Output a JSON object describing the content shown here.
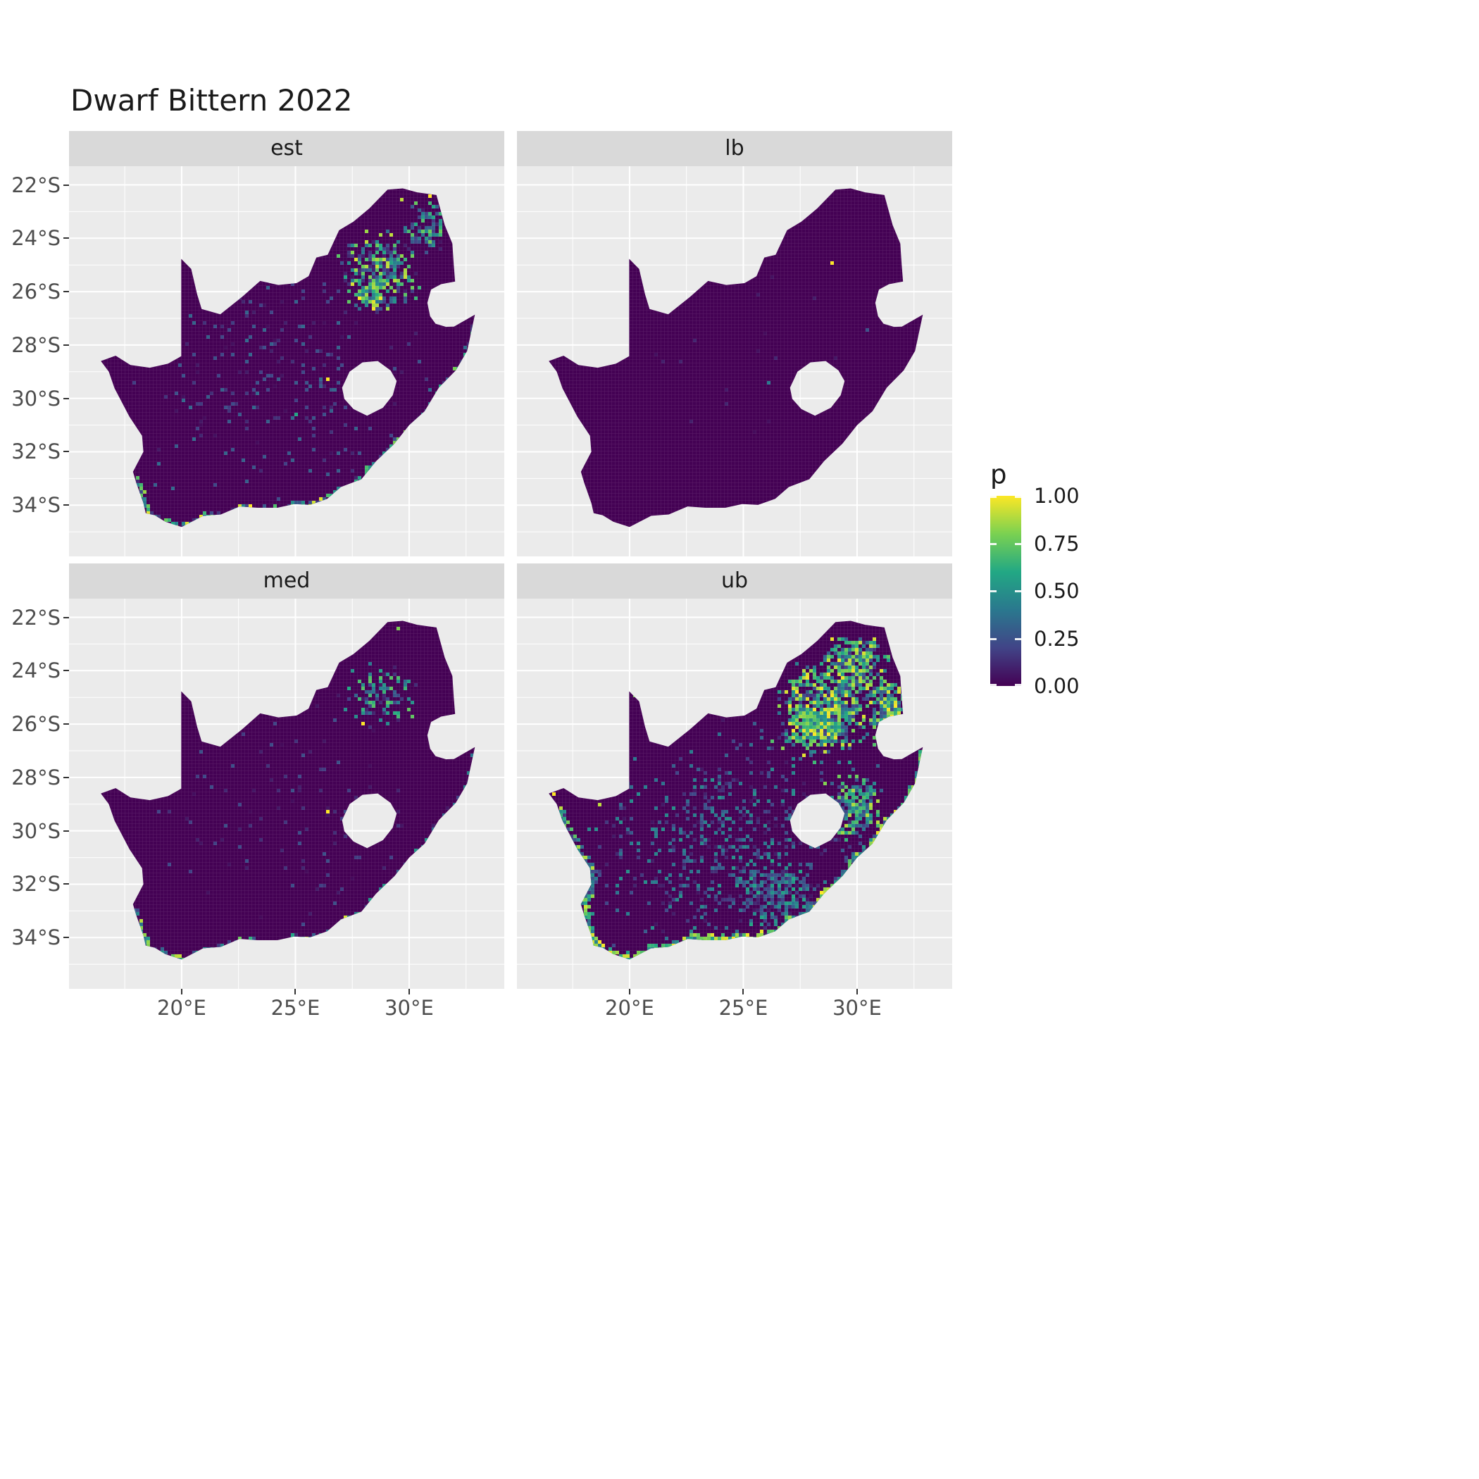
{
  "title": "Dwarf Bittern 2022",
  "axes": {
    "x_tick_labels": [
      "20°E",
      "25°E",
      "30°E"
    ],
    "x_tick_values": [
      20,
      25,
      30
    ],
    "y_tick_labels": [
      "22°S",
      "24°S",
      "26°S",
      "28°S",
      "30°S",
      "32°S",
      "34°S"
    ],
    "y_tick_values": [
      -22,
      -24,
      -26,
      -28,
      -30,
      -32,
      -34
    ],
    "x_minor": [
      17.5,
      22.5,
      27.5,
      32.5
    ],
    "y_minor": [
      -23,
      -25,
      -27,
      -29,
      -31,
      -33,
      -35
    ],
    "x_range": [
      15.05,
      34.18
    ],
    "y_range": [
      -35.92,
      -21.3
    ]
  },
  "legend": {
    "title": "p",
    "tick_labels": [
      "1.00",
      "0.75",
      "0.50",
      "0.25",
      "0.00"
    ],
    "tick_values": [
      1.0,
      0.75,
      0.5,
      0.25,
      0.0
    ]
  },
  "style": {
    "panel_bg": "#EBEBEB",
    "strip_bg": "#D9D9D9",
    "axis_text": "#4D4D4D",
    "map_zero": "#440154",
    "grid": "#FFFFFF"
  },
  "viridis_anchors": [
    [
      0.0,
      "#440154"
    ],
    [
      0.2,
      "#414487"
    ],
    [
      0.4,
      "#2A788E"
    ],
    [
      0.6,
      "#22A884"
    ],
    [
      0.8,
      "#7AD151"
    ],
    [
      1.0,
      "#FDE725"
    ]
  ],
  "chart_data": {
    "type": "heatmap",
    "title": "Dwarf Bittern 2022",
    "region": "South Africa",
    "value_name": "p",
    "value_range": [
      0,
      1
    ],
    "palette": "viridis",
    "facet_layout": "2x2 grid, shared lon/lat axes, shared colourbar",
    "facets": [
      {
        "label": "est",
        "seed": 101,
        "pattern": "mostly p=0; scattered low-to-high cells in the northeast and along the southern and eastern coasts",
        "clusters": [
          {
            "type": "blob",
            "c": [
              28.6,
              -25.2
            ],
            "r": [
              2.3,
              1.9
            ],
            "n": 280,
            "p": [
              0.05,
              0.95
            ]
          },
          {
            "type": "blob",
            "c": [
              30.8,
              -23.6
            ],
            "r": [
              1.2,
              1.2
            ],
            "n": 90,
            "p": [
              0.05,
              0.8
            ]
          },
          {
            "type": "blob",
            "c": [
              28.2,
              -26.1
            ],
            "r": [
              0.8,
              0.7
            ],
            "n": 70,
            "p": [
              0.3,
              1.0
            ]
          },
          {
            "type": "band",
            "line": "south",
            "n": 240,
            "jitter": 0.22,
            "p": [
              0.1,
              1.0
            ]
          },
          {
            "type": "band",
            "line": "east",
            "n": 130,
            "jitter": 0.22,
            "p": [
              0.05,
              0.85
            ]
          },
          {
            "type": "blob",
            "c": [
              24.5,
              -29.5
            ],
            "r": [
              8.0,
              6.0
            ],
            "n": 260,
            "p": [
              0.02,
              0.35
            ]
          }
        ],
        "dots": [
          [
            26.35,
            -29.25,
            1.0
          ],
          [
            27.8,
            -26.15,
            1.0
          ],
          [
            30.9,
            -22.3,
            1.0
          ],
          [
            24.9,
            -30.6,
            0.6
          ],
          [
            29.6,
            -22.5,
            0.9
          ]
        ]
      },
      {
        "label": "lb",
        "seed": 202,
        "pattern": "essentially all p=0 with a few isolated non-zero cells",
        "clusters": [
          {
            "type": "blob",
            "c": [
              25.0,
              -28.5
            ],
            "r": [
              7.0,
              5.0
            ],
            "n": 18,
            "p": [
              0.02,
              0.12
            ]
          }
        ],
        "dots": [
          [
            28.85,
            -24.85,
            1.0
          ],
          [
            26.1,
            -29.3,
            0.4
          ],
          [
            30.3,
            -27.4,
            0.25
          ]
        ]
      },
      {
        "label": "med",
        "seed": 303,
        "pattern": "mostly p=0; sparse non-zero cells in the northeast and along the southern coast",
        "clusters": [
          {
            "type": "blob",
            "c": [
              28.6,
              -24.9
            ],
            "r": [
              1.9,
              1.5
            ],
            "n": 110,
            "p": [
              0.05,
              0.75
            ]
          },
          {
            "type": "band",
            "line": "south",
            "n": 150,
            "jitter": 0.18,
            "p": [
              0.1,
              0.95
            ]
          },
          {
            "type": "band",
            "line": "east",
            "n": 60,
            "jitter": 0.18,
            "p": [
              0.05,
              0.6
            ]
          },
          {
            "type": "blob",
            "c": [
              24.5,
              -29.5
            ],
            "r": [
              8.0,
              6.0
            ],
            "n": 120,
            "p": [
              0.02,
              0.25
            ]
          }
        ],
        "dots": [
          [
            26.35,
            -29.25,
            1.0
          ],
          [
            27.85,
            -25.95,
            1.0
          ],
          [
            29.5,
            -22.3,
            0.8
          ],
          [
            31.2,
            -22.25,
            0.9
          ]
        ]
      },
      {
        "label": "ub",
        "seed": 404,
        "pattern": "extensive moderate-to-high p across the northeast and along the southern and eastern coasts; speckled low values inland",
        "clusters": [
          {
            "type": "blob",
            "c": [
              28.4,
              -25.4
            ],
            "r": [
              2.6,
              2.2
            ],
            "n": 650,
            "p": [
              0.1,
              1.0
            ]
          },
          {
            "type": "blob",
            "c": [
              27.9,
              -26.1
            ],
            "r": [
              1.1,
              0.9
            ],
            "n": 220,
            "p": [
              0.4,
              1.0
            ]
          },
          {
            "type": "blob",
            "c": [
              29.8,
              -23.6
            ],
            "r": [
              1.8,
              1.3
            ],
            "n": 260,
            "p": [
              0.1,
              1.0
            ]
          },
          {
            "type": "blob",
            "c": [
              31.2,
              -25.3
            ],
            "r": [
              1.0,
              1.6
            ],
            "n": 200,
            "p": [
              0.2,
              1.0
            ]
          },
          {
            "type": "band",
            "line": "east",
            "n": 420,
            "jitter": 0.28,
            "p": [
              0.3,
              1.0
            ]
          },
          {
            "type": "band",
            "line": "south",
            "n": 520,
            "jitter": 0.3,
            "p": [
              0.35,
              1.0
            ]
          },
          {
            "type": "band",
            "line": "west",
            "n": 130,
            "jitter": 0.25,
            "p": [
              0.15,
              0.9
            ]
          },
          {
            "type": "blob",
            "c": [
              24.5,
              -30.5
            ],
            "r": [
              8.0,
              5.5
            ],
            "n": 600,
            "p": [
              0.05,
              0.5
            ]
          },
          {
            "type": "blob",
            "c": [
              29.8,
              -29.0
            ],
            "r": [
              1.5,
              1.5
            ],
            "n": 200,
            "p": [
              0.1,
              0.9
            ]
          },
          {
            "type": "blob",
            "c": [
              26.5,
              -32.3
            ],
            "r": [
              2.5,
              1.6
            ],
            "n": 220,
            "p": [
              0.05,
              0.6
            ]
          }
        ],
        "dots": [
          [
            16.6,
            -28.6,
            1.0
          ],
          [
            18.6,
            -28.9,
            0.9
          ],
          [
            20.2,
            -24.9,
            0.8
          ]
        ]
      }
    ],
    "map_outline": {
      "country": [
        [
          16.45,
          -28.6
        ],
        [
          17.1,
          -28.4
        ],
        [
          17.75,
          -28.75
        ],
        [
          18.6,
          -28.85
        ],
        [
          19.4,
          -28.7
        ],
        [
          19.98,
          -28.42
        ],
        [
          19.98,
          -24.77
        ],
        [
          20.42,
          -25.15
        ],
        [
          20.68,
          -26.1
        ],
        [
          20.88,
          -26.65
        ],
        [
          21.7,
          -26.85
        ],
        [
          22.65,
          -26.2
        ],
        [
          23.45,
          -25.6
        ],
        [
          24.25,
          -25.75
        ],
        [
          25.05,
          -25.68
        ],
        [
          25.58,
          -25.42
        ],
        [
          25.92,
          -24.72
        ],
        [
          26.42,
          -24.62
        ],
        [
          26.92,
          -23.7
        ],
        [
          27.55,
          -23.38
        ],
        [
          28.25,
          -22.88
        ],
        [
          29.05,
          -22.18
        ],
        [
          29.72,
          -22.13
        ],
        [
          30.35,
          -22.28
        ],
        [
          31.2,
          -22.38
        ],
        [
          31.56,
          -23.5
        ],
        [
          31.9,
          -24.2
        ],
        [
          31.96,
          -25.0
        ],
        [
          32.02,
          -25.62
        ],
        [
          31.4,
          -25.72
        ],
        [
          30.96,
          -25.92
        ],
        [
          30.8,
          -26.42
        ],
        [
          30.92,
          -26.92
        ],
        [
          31.16,
          -27.2
        ],
        [
          31.62,
          -27.32
        ],
        [
          31.97,
          -27.31
        ],
        [
          32.89,
          -26.86
        ],
        [
          32.55,
          -28.22
        ],
        [
          32.05,
          -28.95
        ],
        [
          31.3,
          -29.6
        ],
        [
          30.68,
          -30.48
        ],
        [
          30.0,
          -31.0
        ],
        [
          29.35,
          -31.7
        ],
        [
          28.55,
          -32.35
        ],
        [
          27.9,
          -33.03
        ],
        [
          27.0,
          -33.32
        ],
        [
          26.4,
          -33.76
        ],
        [
          25.65,
          -33.99
        ],
        [
          24.95,
          -33.96
        ],
        [
          24.2,
          -34.1
        ],
        [
          23.35,
          -34.1
        ],
        [
          22.55,
          -34.05
        ],
        [
          21.72,
          -34.35
        ],
        [
          20.95,
          -34.4
        ],
        [
          20.0,
          -34.82
        ],
        [
          19.28,
          -34.62
        ],
        [
          18.82,
          -34.38
        ],
        [
          18.42,
          -34.3
        ],
        [
          18.32,
          -33.92
        ],
        [
          18.0,
          -33.15
        ],
        [
          17.86,
          -32.75
        ],
        [
          18.32,
          -32.0
        ],
        [
          18.26,
          -31.4
        ],
        [
          17.7,
          -30.68
        ],
        [
          17.05,
          -29.62
        ],
        [
          16.8,
          -29.0
        ]
      ],
      "lesotho_hole": [
        [
          27.05,
          -29.6
        ],
        [
          27.38,
          -29.0
        ],
        [
          27.95,
          -28.65
        ],
        [
          28.62,
          -28.6
        ],
        [
          29.18,
          -28.95
        ],
        [
          29.45,
          -29.35
        ],
        [
          29.28,
          -29.88
        ],
        [
          28.85,
          -30.35
        ],
        [
          28.15,
          -30.65
        ],
        [
          27.55,
          -30.4
        ],
        [
          27.15,
          -30.02
        ]
      ]
    },
    "coastlines": {
      "south": [
        [
          17.95,
          -32.85
        ],
        [
          18.3,
          -33.9
        ],
        [
          18.45,
          -34.3
        ],
        [
          19.3,
          -34.58
        ],
        [
          20.0,
          -34.8
        ],
        [
          20.95,
          -34.4
        ],
        [
          21.75,
          -34.33
        ],
        [
          22.55,
          -34.05
        ],
        [
          23.4,
          -34.08
        ],
        [
          24.2,
          -34.08
        ],
        [
          25.0,
          -33.95
        ],
        [
          25.65,
          -33.98
        ],
        [
          26.45,
          -33.74
        ],
        [
          27.0,
          -33.3
        ],
        [
          27.9,
          -33.02
        ]
      ],
      "east": [
        [
          27.9,
          -33.02
        ],
        [
          28.55,
          -32.35
        ],
        [
          29.35,
          -31.7
        ],
        [
          30.0,
          -31.0
        ],
        [
          30.68,
          -30.48
        ],
        [
          31.3,
          -29.6
        ],
        [
          32.05,
          -28.95
        ],
        [
          32.55,
          -28.2
        ],
        [
          32.89,
          -26.88
        ]
      ],
      "west": [
        [
          16.85,
          -29.1
        ],
        [
          17.1,
          -29.7
        ],
        [
          17.72,
          -30.7
        ],
        [
          18.26,
          -31.45
        ],
        [
          18.3,
          -32.05
        ],
        [
          17.88,
          -32.78
        ]
      ]
    }
  }
}
